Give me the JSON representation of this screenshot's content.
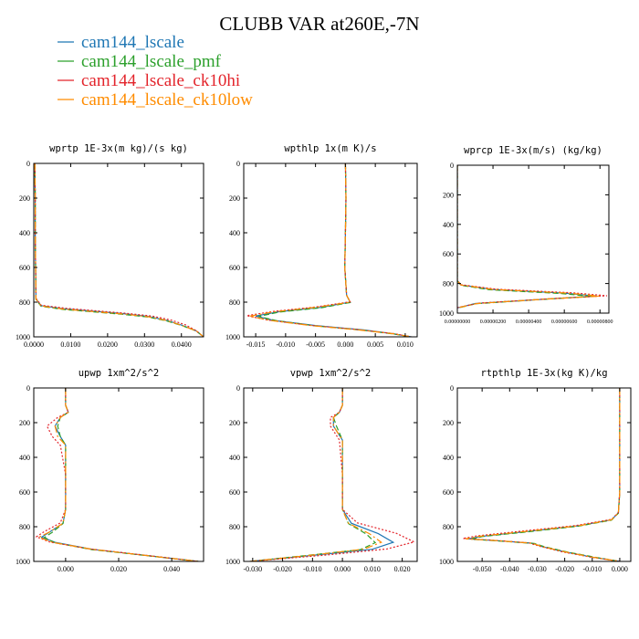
{
  "title": "CLUBB VAR at260E,-7N",
  "legend": [
    {
      "name": "cam144_lscale",
      "color": "#1f77b4"
    },
    {
      "name": "cam144_lscale_pmf",
      "color": "#2ca02c"
    },
    {
      "name": "cam144_lscale_ck10hi",
      "color": "#e3242b"
    },
    {
      "name": "cam144_lscale_ck10low",
      "color": "#ff8c00"
    }
  ],
  "chart_data": [
    {
      "type": "line",
      "title": "wprtp   1E-3x(m kg)/(s kg)",
      "xlim": [
        0,
        0.046
      ],
      "ylim": [
        1000,
        0
      ],
      "xticks": [
        {
          "v": 0,
          "l": "0.0000"
        },
        {
          "v": 0.01,
          "l": "0.0100"
        },
        {
          "v": 0.02,
          "l": "0.0200"
        },
        {
          "v": 0.03,
          "l": "0.0300"
        },
        {
          "v": 0.04,
          "l": "0.0400"
        }
      ],
      "yticks": [
        0,
        200,
        400,
        600,
        800,
        1000
      ],
      "series": [
        {
          "x": [
            0.0003,
            0.0004,
            0.0004,
            0.0005,
            0.0006,
            0.002,
            0.008,
            0.016,
            0.024,
            0.031,
            0.036,
            0.04,
            0.044,
            0.046
          ],
          "y": [
            0,
            200,
            400,
            600,
            780,
            820,
            838,
            852,
            866,
            882,
            905,
            932,
            965,
            1000
          ]
        },
        {
          "x": [
            0.0003,
            0.0004,
            0.0004,
            0.0005,
            0.0006,
            0.002,
            0.008,
            0.016,
            0.024,
            0.031,
            0.036,
            0.04,
            0.044,
            0.046
          ],
          "y": [
            0,
            200,
            400,
            600,
            785,
            824,
            842,
            856,
            870,
            886,
            908,
            934,
            966,
            1000
          ]
        },
        {
          "x": [
            0.0003,
            0.0004,
            0.0004,
            0.0005,
            0.0006,
            0.002,
            0.009,
            0.017,
            0.025,
            0.032,
            0.037,
            0.041,
            0.044,
            0.046
          ],
          "y": [
            0,
            200,
            400,
            600,
            778,
            818,
            836,
            850,
            864,
            880,
            902,
            930,
            964,
            1000
          ]
        },
        {
          "x": [
            0.0003,
            0.0004,
            0.0004,
            0.0005,
            0.0006,
            0.002,
            0.008,
            0.016,
            0.024,
            0.031,
            0.036,
            0.04,
            0.044,
            0.046
          ],
          "y": [
            0,
            200,
            400,
            600,
            782,
            822,
            840,
            854,
            868,
            884,
            906,
            933,
            965,
            1000
          ]
        }
      ]
    },
    {
      "type": "line",
      "title": "wpthlp   1x(m K)/s",
      "xlim": [
        -0.017,
        0.012
      ],
      "ylim": [
        1000,
        0
      ],
      "xticks": [
        {
          "v": -0.015,
          "l": "-0.015"
        },
        {
          "v": -0.01,
          "l": "-0.010"
        },
        {
          "v": -0.005,
          "l": "-0.005"
        },
        {
          "v": 0,
          "l": "0.000"
        },
        {
          "v": 0.005,
          "l": "0.005"
        },
        {
          "v": 0.01,
          "l": "0.010"
        }
      ],
      "yticks": [
        0,
        200,
        400,
        600,
        800,
        1000
      ],
      "series": [
        {
          "x": [
            0.0,
            0.0001,
            0.0,
            -0.0001,
            0.0002,
            0.0008,
            -0.004,
            -0.011,
            -0.015,
            -0.012,
            -0.005,
            0.003,
            0.008,
            0.011
          ],
          "y": [
            0,
            200,
            400,
            600,
            760,
            800,
            830,
            855,
            880,
            905,
            935,
            960,
            982,
            1000
          ]
        },
        {
          "x": [
            0.0,
            0.0001,
            0.0,
            -0.0001,
            0.0002,
            0.0008,
            -0.004,
            -0.011,
            -0.0145,
            -0.0115,
            -0.005,
            0.003,
            0.008,
            0.011
          ],
          "y": [
            0,
            200,
            400,
            600,
            760,
            802,
            832,
            857,
            882,
            907,
            937,
            962,
            983,
            1000
          ]
        },
        {
          "x": [
            0.0,
            0.0001,
            0.0,
            -0.0001,
            0.0002,
            0.0008,
            -0.005,
            -0.012,
            -0.0165,
            -0.013,
            -0.006,
            0.002,
            0.008,
            0.011
          ],
          "y": [
            0,
            200,
            400,
            600,
            760,
            798,
            828,
            853,
            878,
            903,
            933,
            958,
            981,
            1000
          ]
        },
        {
          "x": [
            0.0,
            0.0001,
            0.0,
            -0.0001,
            0.0002,
            0.0008,
            -0.005,
            -0.012,
            -0.016,
            -0.0125,
            -0.0055,
            0.0025,
            0.008,
            0.011
          ],
          "y": [
            0,
            200,
            400,
            600,
            760,
            800,
            830,
            856,
            881,
            906,
            936,
            961,
            982,
            1000
          ]
        }
      ]
    },
    {
      "type": "line",
      "title": "wprcp   1E-3x(m/s) (kg/kg)",
      "xlim": [
        0,
        8.5e-06
      ],
      "ylim": [
        1000,
        0
      ],
      "xticks": [
        {
          "v": 0,
          "l": "0.00000000"
        },
        {
          "v": 2e-06,
          "l": "0.00000200"
        },
        {
          "v": 4e-06,
          "l": "0.00000400"
        },
        {
          "v": 6e-06,
          "l": "0.00000600"
        },
        {
          "v": 8e-06,
          "l": "0.00000800"
        }
      ],
      "yticks": [
        0,
        200,
        400,
        600,
        800,
        1000
      ],
      "series": [
        {
          "x": [
            0,
            0,
            0,
            0,
            2e-07,
            2e-06,
            6e-06,
            7.8e-06,
            5e-06,
            1e-06,
            0
          ],
          "y": [
            0,
            300,
            600,
            780,
            810,
            840,
            865,
            885,
            905,
            935,
            965
          ]
        },
        {
          "x": [
            0,
            0,
            0,
            0,
            2e-07,
            1.8e-06,
            5.8e-06,
            7.5e-06,
            4.8e-06,
            1e-06,
            0
          ],
          "y": [
            0,
            300,
            600,
            782,
            812,
            842,
            867,
            887,
            907,
            937,
            967
          ]
        },
        {
          "x": [
            0,
            0,
            0,
            0,
            2e-07,
            2.2e-06,
            6.5e-06,
            8.4e-06,
            5.2e-06,
            1.2e-06,
            0
          ],
          "y": [
            0,
            300,
            600,
            778,
            808,
            838,
            863,
            883,
            903,
            933,
            963
          ]
        },
        {
          "x": [
            0,
            0,
            0,
            0,
            2e-07,
            2e-06,
            6.2e-06,
            8e-06,
            5e-06,
            1.1e-06,
            0
          ],
          "y": [
            0,
            300,
            600,
            780,
            810,
            840,
            865,
            885,
            905,
            935,
            965
          ]
        }
      ]
    },
    {
      "type": "line",
      "title": "upwp   1xm^2/s^2",
      "xlim": [
        -0.012,
        0.052
      ],
      "ylim": [
        1000,
        0
      ],
      "xticks": [
        {
          "v": 0,
          "l": "0.000"
        },
        {
          "v": 0.02,
          "l": "0.020"
        },
        {
          "v": 0.04,
          "l": "0.040"
        }
      ],
      "yticks": [
        0,
        200,
        400,
        600,
        800,
        1000
      ],
      "series": [
        {
          "x": [
            0.0,
            0.0,
            0.001,
            -0.002,
            -0.004,
            -0.002,
            0.0,
            0.0,
            0.0,
            -0.001,
            -0.006,
            -0.009,
            -0.004,
            0.01,
            0.03,
            0.05
          ],
          "y": [
            0,
            100,
            140,
            170,
            220,
            280,
            330,
            500,
            700,
            780,
            830,
            860,
            890,
            930,
            965,
            1000
          ]
        },
        {
          "x": [
            0.0,
            0.0,
            0.001,
            -0.002,
            -0.003,
            -0.002,
            0.0,
            0.0,
            0.0,
            -0.001,
            -0.005,
            -0.008,
            -0.004,
            0.01,
            0.03,
            0.05
          ],
          "y": [
            0,
            100,
            140,
            170,
            220,
            280,
            330,
            500,
            700,
            782,
            832,
            862,
            892,
            932,
            966,
            1000
          ]
        },
        {
          "x": [
            0.0,
            0.0,
            0.001,
            -0.003,
            -0.007,
            -0.005,
            -0.002,
            0.0,
            0.0,
            -0.002,
            -0.008,
            -0.011,
            -0.006,
            0.009,
            0.03,
            0.05
          ],
          "y": [
            0,
            100,
            140,
            170,
            220,
            280,
            330,
            500,
            700,
            778,
            828,
            858,
            888,
            928,
            964,
            1000
          ]
        },
        {
          "x": [
            0.0,
            0.0,
            0.001,
            -0.002,
            -0.004,
            -0.003,
            0.0,
            0.0,
            0.0,
            -0.001,
            -0.006,
            -0.01,
            -0.005,
            0.01,
            0.03,
            0.05
          ],
          "y": [
            0,
            100,
            140,
            170,
            220,
            280,
            330,
            500,
            700,
            780,
            830,
            860,
            890,
            930,
            965,
            1000
          ]
        }
      ]
    },
    {
      "type": "line",
      "title": "vpwp   1xm^2/s^2",
      "xlim": [
        -0.033,
        0.025
      ],
      "ylim": [
        1000,
        0
      ],
      "xticks": [
        {
          "v": -0.03,
          "l": "-0.030"
        },
        {
          "v": -0.02,
          "l": "-0.020"
        },
        {
          "v": -0.01,
          "l": "-0.010"
        },
        {
          "v": 0,
          "l": "0.000"
        },
        {
          "v": 0.01,
          "l": "0.010"
        },
        {
          "v": 0.02,
          "l": "0.020"
        }
      ],
      "yticks": [
        0,
        200,
        400,
        600,
        800,
        1000
      ],
      "series": [
        {
          "x": [
            0.0,
            0.0,
            -0.001,
            -0.003,
            -0.003,
            0.0,
            0.0,
            0.0,
            0.003,
            0.012,
            0.017,
            0.01,
            -0.01,
            -0.031
          ],
          "y": [
            0,
            100,
            140,
            170,
            220,
            300,
            500,
            700,
            780,
            840,
            890,
            930,
            965,
            1000
          ]
        },
        {
          "x": [
            0.0,
            0.0,
            -0.001,
            -0.003,
            -0.002,
            0.0,
            0.0,
            0.0,
            0.002,
            0.008,
            0.011,
            0.006,
            -0.012,
            -0.031
          ],
          "y": [
            0,
            100,
            140,
            170,
            220,
            300,
            500,
            700,
            782,
            842,
            892,
            932,
            966,
            1000
          ]
        },
        {
          "x": [
            0.0,
            0.0,
            -0.001,
            -0.004,
            -0.004,
            -0.001,
            0.0,
            0.0,
            0.005,
            0.018,
            0.024,
            0.015,
            -0.006,
            -0.031
          ],
          "y": [
            0,
            100,
            140,
            170,
            220,
            300,
            500,
            700,
            778,
            838,
            888,
            928,
            964,
            1000
          ]
        },
        {
          "x": [
            0.0,
            0.0,
            -0.001,
            -0.003,
            -0.003,
            0.0,
            0.0,
            0.0,
            0.002,
            0.009,
            0.013,
            0.007,
            -0.011,
            -0.031
          ],
          "y": [
            0,
            100,
            140,
            170,
            220,
            300,
            500,
            700,
            780,
            840,
            890,
            930,
            965,
            1000
          ]
        }
      ]
    },
    {
      "type": "line",
      "title": "rtpthlp   1E-3x(kg K)/kg",
      "xlim": [
        -0.059,
        0.004
      ],
      "ylim": [
        1000,
        0
      ],
      "xticks": [
        {
          "v": -0.05,
          "l": "-0.050"
        },
        {
          "v": -0.04,
          "l": "-0.040"
        },
        {
          "v": -0.03,
          "l": "-0.030"
        },
        {
          "v": -0.02,
          "l": "-0.020"
        },
        {
          "v": -0.01,
          "l": "-0.010"
        },
        {
          "v": 0,
          "l": "0.000"
        }
      ],
      "yticks": [
        0,
        200,
        400,
        600,
        800,
        1000
      ],
      "series": [
        {
          "x": [
            0.0,
            0.0,
            0.0,
            -0.0005,
            -0.003,
            -0.015,
            -0.035,
            -0.05,
            -0.055,
            -0.045,
            -0.032,
            -0.028,
            -0.02,
            -0.01,
            0.0
          ],
          "y": [
            0,
            300,
            600,
            720,
            760,
            795,
            830,
            855,
            870,
            880,
            895,
            915,
            945,
            975,
            1000
          ]
        },
        {
          "x": [
            0.0,
            0.0,
            0.0,
            -0.0005,
            -0.003,
            -0.015,
            -0.035,
            -0.05,
            -0.054,
            -0.044,
            -0.031,
            -0.027,
            -0.019,
            -0.009,
            0.0
          ],
          "y": [
            0,
            300,
            600,
            722,
            762,
            797,
            832,
            857,
            872,
            882,
            897,
            917,
            946,
            976,
            1000
          ]
        },
        {
          "x": [
            0.0,
            0.0,
            0.0,
            -0.0005,
            -0.003,
            -0.016,
            -0.037,
            -0.052,
            -0.057,
            -0.046,
            -0.033,
            -0.029,
            -0.021,
            -0.011,
            0.0
          ],
          "y": [
            0,
            300,
            600,
            718,
            758,
            793,
            828,
            853,
            868,
            878,
            893,
            913,
            944,
            974,
            1000
          ]
        },
        {
          "x": [
            0.0,
            0.0,
            0.0,
            -0.0005,
            -0.003,
            -0.015,
            -0.036,
            -0.051,
            -0.056,
            -0.045,
            -0.032,
            -0.028,
            -0.02,
            -0.01,
            0.0
          ],
          "y": [
            0,
            300,
            600,
            720,
            760,
            795,
            830,
            855,
            870,
            880,
            895,
            915,
            945,
            975,
            1000
          ]
        }
      ]
    }
  ]
}
